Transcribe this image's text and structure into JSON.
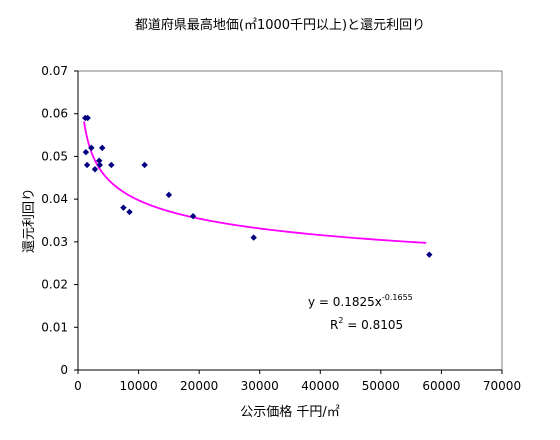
{
  "chart_data": {
    "type": "scatter",
    "title": "都道府県最高地価(㎡1000千円以上)と還元利回り",
    "xlabel": "公示価格 千円/㎡",
    "ylabel": "還元利回り",
    "xlim": [
      0,
      70000
    ],
    "ylim": [
      0,
      0.07
    ],
    "x_ticks": [
      "0",
      "10000",
      "20000",
      "30000",
      "40000",
      "50000",
      "60000",
      "70000"
    ],
    "y_ticks": [
      "0",
      "0.01",
      "0.02",
      "0.03",
      "0.04",
      "0.05",
      "0.06",
      "0.07"
    ],
    "grid": false,
    "legend": "none",
    "points": [
      {
        "x": 1200,
        "y": 0.059
      },
      {
        "x": 1600,
        "y": 0.059
      },
      {
        "x": 1300,
        "y": 0.051
      },
      {
        "x": 1500,
        "y": 0.048
      },
      {
        "x": 2200,
        "y": 0.052
      },
      {
        "x": 2800,
        "y": 0.047
      },
      {
        "x": 3500,
        "y": 0.049
      },
      {
        "x": 3600,
        "y": 0.048
      },
      {
        "x": 4000,
        "y": 0.052
      },
      {
        "x": 5500,
        "y": 0.048
      },
      {
        "x": 7500,
        "y": 0.038
      },
      {
        "x": 8500,
        "y": 0.037
      },
      {
        "x": 11000,
        "y": 0.048
      },
      {
        "x": 15000,
        "y": 0.041
      },
      {
        "x": 19000,
        "y": 0.036
      },
      {
        "x": 29000,
        "y": 0.031
      },
      {
        "x": 58000,
        "y": 0.027
      }
    ],
    "trendline": {
      "type": "power",
      "a": 0.1825,
      "b": -0.1655,
      "x_from": 1000,
      "x_to": 57500
    },
    "equation": {
      "prefix": "y = 0.1825x",
      "exponent": "-0.1655",
      "r2_prefix": "R",
      "r2_exp": "2",
      "r2_value": " = 0.8105"
    },
    "colors": {
      "points": "#000080",
      "trendline": "#ff00ff",
      "axis": "#000000"
    }
  }
}
